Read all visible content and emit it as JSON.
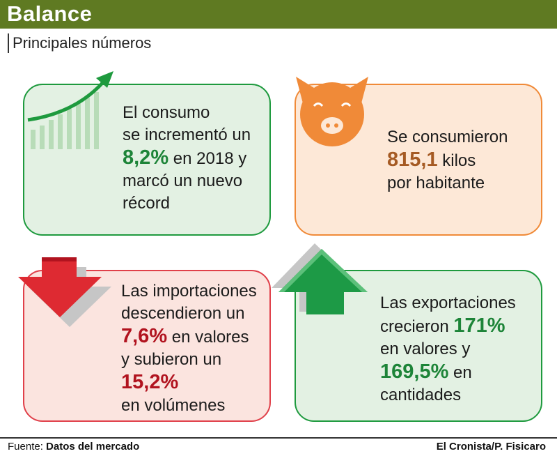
{
  "header": {
    "title": "Balance",
    "subtitle": "Principales números"
  },
  "cards": {
    "consumo": {
      "l1": "El consumo",
      "l2": "se incrementó un",
      "value": "8,2%",
      "l3b": "en 2018 y",
      "l4": "marcó un nuevo",
      "l5": "récord"
    },
    "kilos": {
      "l1": "Se consumieron",
      "value": "815,1",
      "l2b": "kilos",
      "l3": "por habitante"
    },
    "importaciones": {
      "l1": "Las importaciones",
      "l2": "descendieron un",
      "value1": "7,6%",
      "l3b": "en valores",
      "l4": "y subieron un",
      "value2": "15,2%",
      "l6": "en volúmenes"
    },
    "exportaciones": {
      "l1": "Las exportaciones",
      "l2a": "crecieron",
      "value1": "171%",
      "l3": "en valores y",
      "value2": "169,5%",
      "l4b": "en",
      "l5": "cantidades"
    }
  },
  "footer": {
    "source_label": "Fuente:",
    "source": "Datos del mercado",
    "credit": "El Cronista/P. Fisicaro"
  },
  "colors": {
    "header": "#5f7a22",
    "green": "#1d8438",
    "orange": "#f08a38",
    "red": "#b1131f"
  },
  "icons": [
    "growth-chart-icon",
    "pig-face-icon",
    "down-arrow-icon",
    "up-arrow-icon"
  ]
}
